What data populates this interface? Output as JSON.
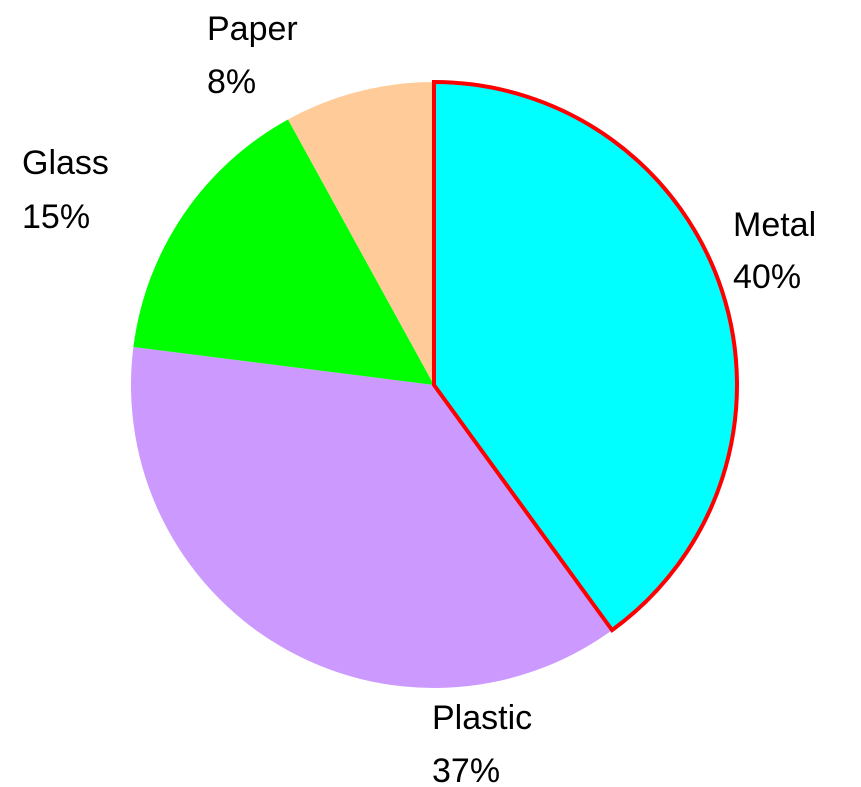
{
  "chart_data": {
    "type": "pie",
    "title": "",
    "start_angle_deg": 0,
    "direction": "clockwise",
    "highlighted_slice": "Metal",
    "highlight_color": "#ff0000",
    "slices": [
      {
        "name": "Metal",
        "value": 40,
        "percent_label": "40%",
        "color": "#00ffff"
      },
      {
        "name": "Plastic",
        "value": 37,
        "percent_label": "37%",
        "color": "#cc99ff"
      },
      {
        "name": "Glass",
        "value": 15,
        "percent_label": "15%",
        "color": "#00ff00"
      },
      {
        "name": "Paper",
        "value": 8,
        "percent_label": "8%",
        "color": "#ffcc99"
      }
    ]
  }
}
